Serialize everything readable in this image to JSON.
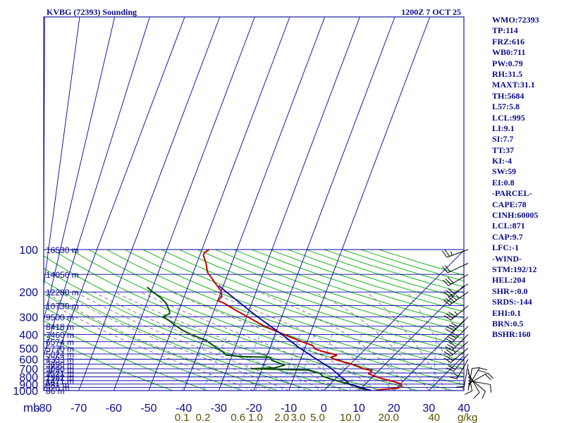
{
  "chart_data": {
    "type": "skew-t",
    "title": "KVBG (72393) Sounding",
    "time_label": "1200Z  7 OCT 25",
    "pressure_unit": "mb",
    "pressure_levels": [
      100,
      200,
      300,
      400,
      500,
      600,
      700,
      800,
      900,
      1000
    ],
    "pressure_lines": [
      100,
      150,
      200,
      250,
      300,
      350,
      400,
      450,
      500,
      550,
      600,
      650,
      700,
      750,
      800,
      850,
      900,
      950,
      1000
    ],
    "temperature_ticks": [
      -80,
      -70,
      -60,
      -50,
      -40,
      -30,
      -20,
      -10,
      0,
      10,
      20,
      30,
      40
    ],
    "mixing_ratio_unit": "g/kg",
    "mixing_ratio_labels": [
      {
        "text": "0.1",
        "temp_c": -40.5
      },
      {
        "text": "0.2",
        "temp_c": -34.5
      },
      {
        "text": "0.6",
        "temp_c": -24.5
      },
      {
        "text": "1.0",
        "temp_c": -19.5
      },
      {
        "text": "2.0",
        "temp_c": -12.0
      },
      {
        "text": "3.0",
        "temp_c": -7.3
      },
      {
        "text": "5.0",
        "temp_c": -1.8
      },
      {
        "text": "10.0",
        "temp_c": 7.5
      },
      {
        "text": "20.0",
        "temp_c": 18.5
      },
      {
        "text": "40",
        "temp_c": 31.5
      }
    ],
    "height_labels": [
      {
        "p": 100,
        "text": "16530 m"
      },
      {
        "p": 150,
        "text": "14050 m"
      },
      {
        "p": 200,
        "text": "12280 m"
      },
      {
        "p": 250,
        "text": "10730 m"
      },
      {
        "p": 300,
        "text": "9500 m"
      },
      {
        "p": 350,
        "text": "8418 m"
      },
      {
        "p": 400,
        "text": "7460 m"
      },
      {
        "p": 450,
        "text": "6574 m"
      },
      {
        "p": 500,
        "text": "5770 m"
      },
      {
        "p": 550,
        "text": "5024 m"
      },
      {
        "p": 600,
        "text": "4333 m"
      },
      {
        "p": 650,
        "text": "3690 m"
      },
      {
        "p": 700,
        "text": "3090 m"
      },
      {
        "p": 750,
        "text": "2521 m"
      },
      {
        "p": 800,
        "text": "1982 m"
      },
      {
        "p": 850,
        "text": "1471 m"
      },
      {
        "p": 900,
        "text": "981 m"
      },
      {
        "p": 950,
        "text": "520 m"
      },
      {
        "p": 1000,
        "text": "86 m"
      }
    ],
    "series": [
      {
        "role": "temperature",
        "color": "#c00000",
        "points": [
          [
            1012,
            14.5
          ],
          [
            985,
            15.5
          ],
          [
            960,
            20.5
          ],
          [
            920,
            20.8
          ],
          [
            895,
            20.0
          ],
          [
            870,
            18.0
          ],
          [
            845,
            15.5
          ],
          [
            810,
            12.0
          ],
          [
            760,
            8.0
          ],
          [
            720,
            8.0
          ],
          [
            700,
            5.0
          ],
          [
            660,
            1.5
          ],
          [
            600,
            -6.0
          ],
          [
            580,
            -7.5
          ],
          [
            565,
            -6.5
          ],
          [
            560,
            -6.5
          ],
          [
            540,
            -9.5
          ],
          [
            525,
            -12.0
          ],
          [
            505,
            -14.5
          ],
          [
            480,
            -16.0
          ],
          [
            455,
            -19.5
          ],
          [
            420,
            -24.5
          ],
          [
            380,
            -30.5
          ],
          [
            345,
            -36.0
          ],
          [
            305,
            -42.0
          ],
          [
            270,
            -48.0
          ],
          [
            240,
            -53.5
          ],
          [
            230,
            -56.0
          ],
          [
            215,
            -56.0
          ],
          [
            205,
            -57.0
          ],
          [
            195,
            -58.0
          ],
          [
            180,
            -60.5
          ],
          [
            160,
            -64.0
          ],
          [
            145,
            -67.0
          ],
          [
            125,
            -70.0
          ],
          [
            110,
            -73.0
          ],
          [
            105,
            -73.5
          ],
          [
            100,
            -73.0
          ]
        ]
      },
      {
        "role": "dewpoint",
        "color": "#005000",
        "points": [
          [
            1012,
            13.0
          ],
          [
            985,
            11.5
          ],
          [
            955,
            9.0
          ],
          [
            925,
            7.5
          ],
          [
            880,
            3.5
          ],
          [
            820,
            -2.0
          ],
          [
            790,
            -4.5
          ],
          [
            755,
            -6.0
          ],
          [
            715,
            -10.5
          ],
          [
            700,
            -27.0
          ],
          [
            690,
            -20.5
          ],
          [
            660,
            -18.5
          ],
          [
            610,
            -23.5
          ],
          [
            580,
            -25.0
          ],
          [
            575,
            -33.0
          ],
          [
            560,
            -38.0
          ],
          [
            530,
            -40.0
          ],
          [
            490,
            -43.5
          ],
          [
            440,
            -48.0
          ],
          [
            400,
            -54.0
          ],
          [
            370,
            -58.0
          ],
          [
            345,
            -61.0
          ],
          [
            320,
            -64.0
          ],
          [
            300,
            -67.0
          ],
          [
            285,
            -66.0
          ],
          [
            270,
            -67.0
          ],
          [
            250,
            -69.0
          ],
          [
            240,
            -70.0
          ],
          [
            220,
            -73.0
          ],
          [
            200,
            -77.0
          ],
          [
            185,
            -80.0
          ]
        ]
      },
      {
        "role": "parcel",
        "color": "#0000a0",
        "points": [
          [
            1012,
            14.5
          ],
          [
            900,
            5.5
          ],
          [
            850,
            3.5
          ],
          [
            800,
            1.0
          ],
          [
            700,
            -4.0
          ],
          [
            600,
            -11.0
          ],
          [
            500,
            -19.0
          ],
          [
            400,
            -28.0
          ],
          [
            300,
            -40.0
          ],
          [
            200,
            -56.0
          ],
          [
            180,
            -60.0
          ]
        ]
      }
    ],
    "wind_barbs": [
      [
        100,
        -40,
        250,
        25
      ],
      [
        125,
        -38,
        245,
        20
      ],
      [
        150,
        -36,
        240,
        30
      ],
      [
        175,
        -34,
        235,
        30
      ],
      [
        200,
        -32,
        235,
        45
      ],
      [
        250,
        -28,
        230,
        35
      ],
      [
        300,
        -24,
        225,
        40
      ],
      [
        350,
        -20,
        225,
        40
      ],
      [
        400,
        -16,
        225,
        30
      ],
      [
        450,
        -14,
        230,
        25
      ],
      [
        500,
        -12,
        230,
        20
      ],
      [
        550,
        -10,
        220,
        20
      ],
      [
        600,
        -8,
        210,
        15
      ],
      [
        650,
        -6,
        190,
        10
      ],
      [
        700,
        -5,
        170,
        10
      ],
      [
        750,
        -4,
        150,
        10
      ],
      [
        800,
        -3,
        130,
        10
      ],
      [
        850,
        -2,
        100,
        10
      ],
      [
        900,
        0,
        60,
        20
      ],
      [
        950,
        0,
        30,
        20
      ],
      [
        1000,
        0,
        10,
        10
      ]
    ],
    "indices": [
      "WMO:72393",
      "TP:114",
      "FRZ:616",
      "WB0:711",
      "PW:0.79",
      "RH:31.5",
      "MAXT:31.1",
      "TH:5684",
      "L57:5.8",
      "LCL:995",
      "LI:9.1",
      "SI:7.7",
      "TT:37",
      "KI:-4",
      "SW:59",
      "EI:0.8",
      "-PARCEL-",
      "CAPE:78",
      "CINH:60005",
      "LCL:871",
      "CAP:9.7",
      "LFC:-1",
      "-WIND-",
      "STM:192/12",
      "HEL:204",
      "SHR+:0.0",
      "SRDS:-144",
      "EHI:0.1",
      "BRN:0.5",
      "BSHR:160"
    ],
    "colors": {
      "frame": "#1a1aa0",
      "grid": "#0000aa",
      "isotherm": "#0000aa",
      "dry_adiabat": "#00aa00",
      "moist_adiabat": "#606060",
      "mixing_ratio": "#2a8cf0",
      "label_blue": "#0a0a8c",
      "label_olive": "#5a5000",
      "barb": "#000000"
    }
  }
}
